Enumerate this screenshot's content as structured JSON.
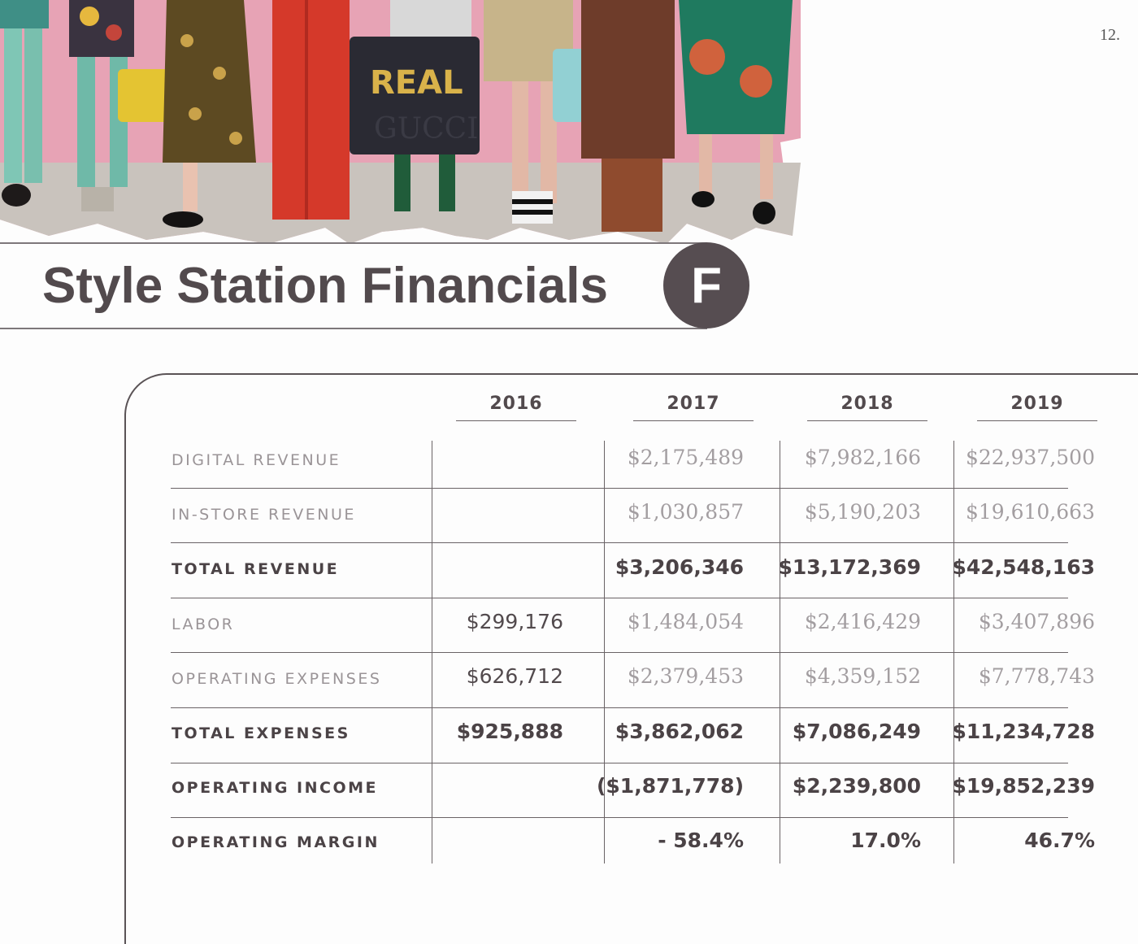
{
  "page_number": "12.",
  "title": "Style Station Financials",
  "badge": "F",
  "photo": {
    "bag_text_1": "REAL",
    "bag_text_2": "GUCCI"
  },
  "table": {
    "years": [
      "2016",
      "2017",
      "2018",
      "2019"
    ],
    "rows": [
      {
        "label": "DIGITAL REVENUE",
        "style": "light",
        "values": [
          "",
          "$2,175,489",
          "$7,982,166",
          "$22,937,500"
        ]
      },
      {
        "label": "IN-STORE REVENUE",
        "style": "light",
        "values": [
          "",
          "$1,030,857",
          "$5,190,203",
          "$19,610,663"
        ]
      },
      {
        "label": "TOTAL REVENUE",
        "style": "bold",
        "values": [
          "",
          "$3,206,346",
          "$13,172,369",
          "$42,548,163"
        ]
      },
      {
        "label": "LABOR",
        "style": "light",
        "values": [
          "$299,176",
          "$1,484,054",
          "$2,416,429",
          "$3,407,896"
        ]
      },
      {
        "label": "OPERATING EXPENSES",
        "style": "light",
        "values": [
          "$626,712",
          "$2,379,453",
          "$4,359,152",
          "$7,778,743"
        ]
      },
      {
        "label": "TOTAL EXPENSES",
        "style": "bold",
        "values": [
          "$925,888",
          "$3,862,062",
          "$7,086,249",
          "$11,234,728"
        ]
      },
      {
        "label": "OPERATING INCOME",
        "style": "bold",
        "values": [
          "",
          "($1,871,778)",
          "$2,239,800",
          "$19,852,239"
        ]
      },
      {
        "label": "OPERATING MARGIN",
        "style": "bold",
        "values": [
          "",
          "- 58.4%",
          "17.0%",
          "46.7%"
        ]
      }
    ]
  },
  "colors": {
    "text_dark": "#524a4d",
    "text_light": "#9a9497",
    "badge_bg": "#564d51",
    "wall_pink": "#e7a3b5"
  }
}
